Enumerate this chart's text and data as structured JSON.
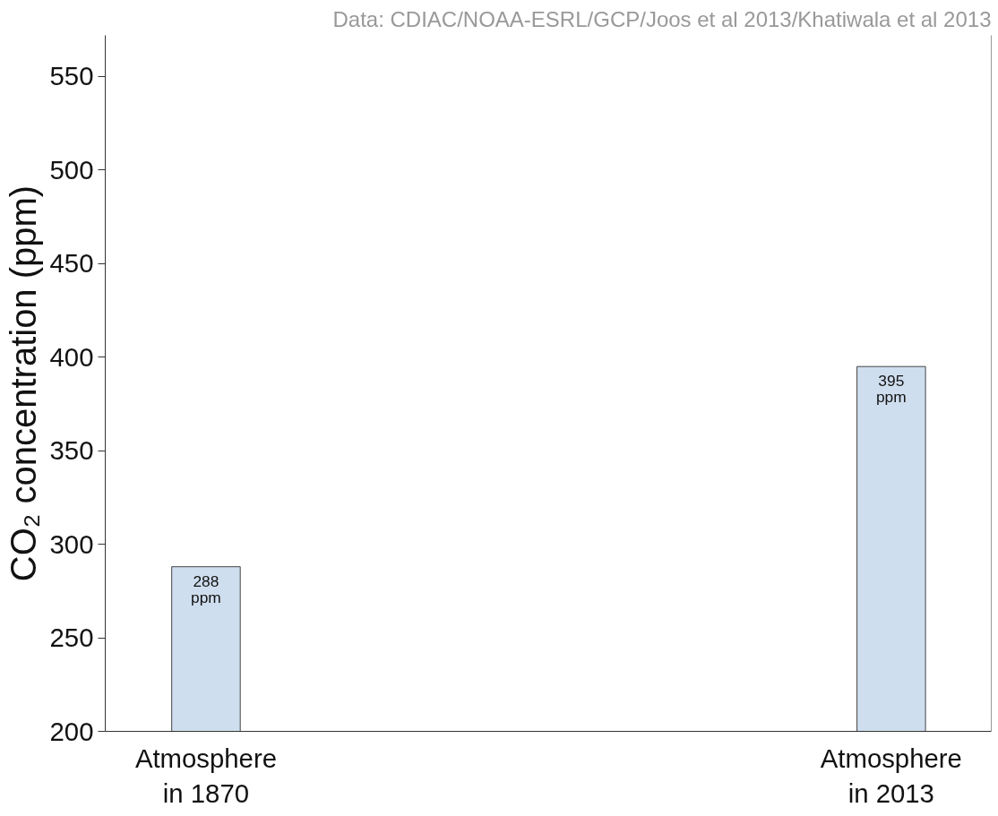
{
  "chart_data": {
    "type": "bar",
    "annotations": [
      "Data: CDIAC/NOAA-ESRL/GCP/Joos et al 2013/Khatiwala et al 2013"
    ],
    "ylabel": "CO₂ concentration (ppm)",
    "categories": [
      "Atmosphere\nin 1870",
      "Atmosphere\nin 2013"
    ],
    "values": [
      288,
      395
    ],
    "value_labels": [
      "288\nppm",
      "395\nppm"
    ],
    "color": "#cfdeee",
    "ylim": [
      200,
      572
    ],
    "yticks": [
      200,
      250,
      300,
      350,
      400,
      450,
      500,
      550
    ],
    "grid": false
  }
}
